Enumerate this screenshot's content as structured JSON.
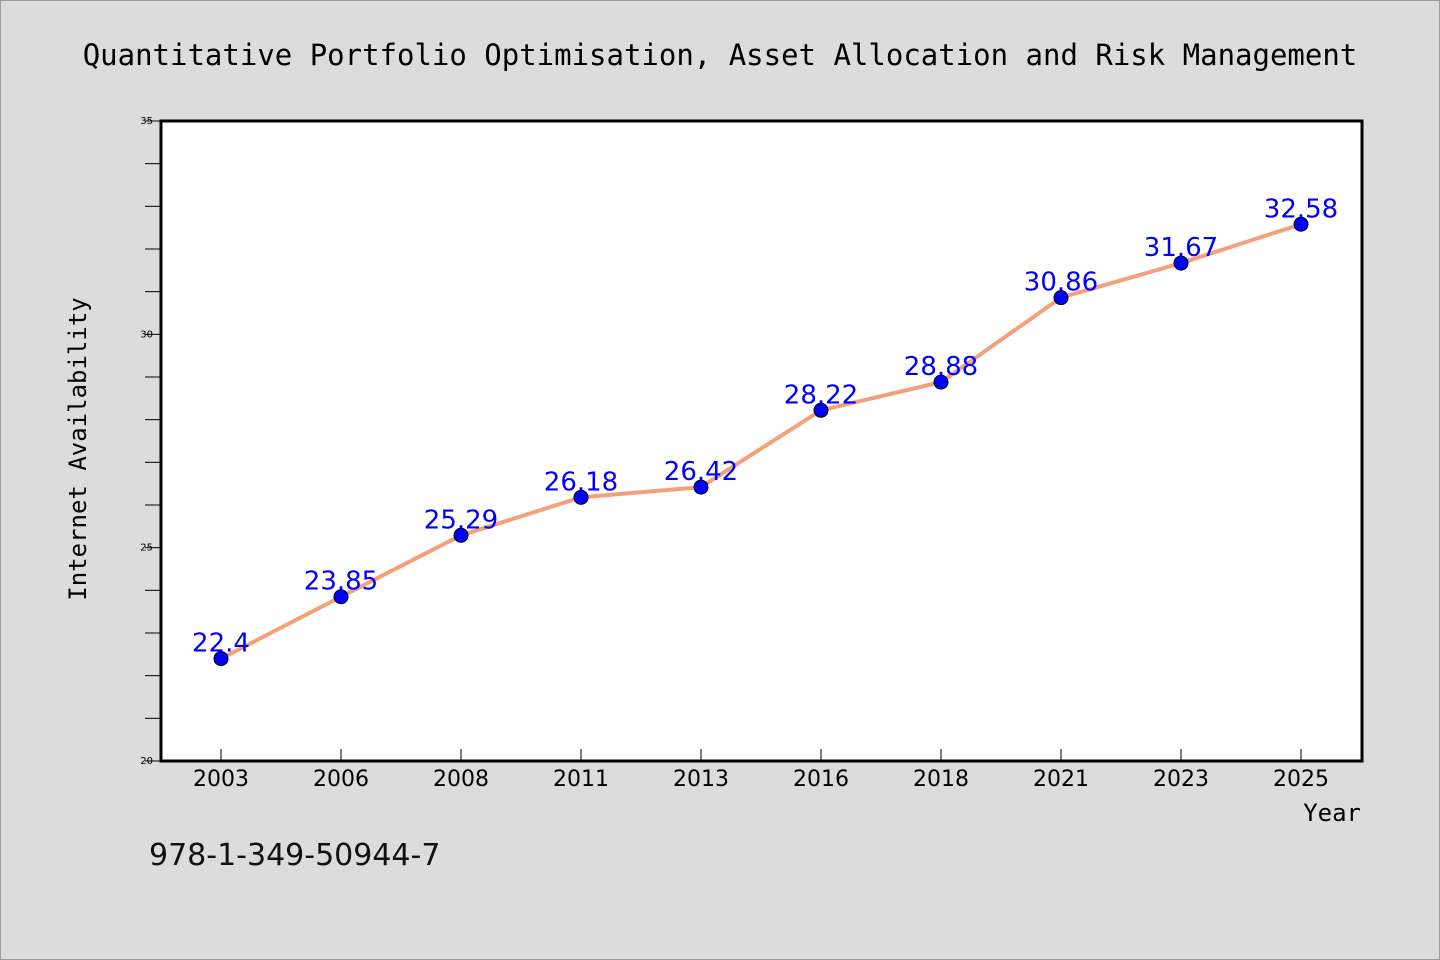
{
  "chart_data": {
    "type": "line",
    "title": "Quantitative Portfolio Optimisation, Asset Allocation and Risk Management",
    "xlabel": "Year",
    "ylabel": "Internet Availability",
    "categories": [
      "2003",
      "2006",
      "2008",
      "2011",
      "2013",
      "2016",
      "2018",
      "2021",
      "2023",
      "2025"
    ],
    "series": [
      {
        "values": [
          22.4,
          23.85,
          25.29,
          26.18,
          26.42,
          28.22,
          28.88,
          30.86,
          31.67,
          32.58
        ],
        "line_color": "#f4a07a",
        "marker_color": "#0000ff"
      }
    ],
    "data_labels": [
      "22.4",
      "23.85",
      "25.29",
      "26.18",
      "26.42",
      "28.22",
      "28.88",
      "30.86",
      "31.67",
      "32.58"
    ],
    "ylim": [
      20,
      35
    ],
    "y_ticks": [
      "20",
      "25",
      "30",
      "35"
    ],
    "y_minor_step": 1,
    "grid": false,
    "legend": "none",
    "label_color": "#0000ff"
  },
  "footer": {
    "isbn": "978-1-349-50944-7"
  },
  "colors": {
    "background": "#dcdcdc",
    "plot_background": "#ffffff",
    "axis": "#000000"
  }
}
